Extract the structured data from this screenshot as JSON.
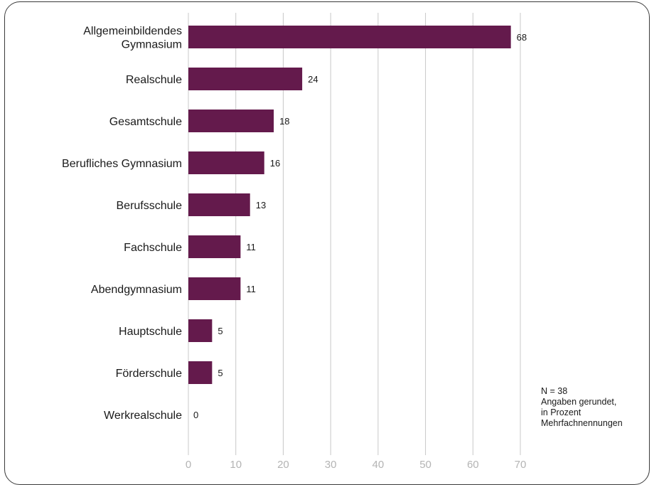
{
  "chart_data": {
    "type": "bar",
    "orientation": "horizontal",
    "categories": [
      "Allgemeinbildendes\nGymnasium",
      "Realschule",
      "Gesamtschule",
      "Berufliches Gymnasium",
      "Berufsschule",
      "Fachschule",
      "Abendgymnasium",
      "Hauptschule",
      "Förderschule",
      "Werkrealschule"
    ],
    "values": [
      68,
      24,
      18,
      16,
      13,
      11,
      11,
      5,
      5,
      0
    ],
    "data_labels": [
      "68",
      "24",
      "18",
      "16",
      "13",
      "11",
      "11",
      "5",
      "5",
      "0"
    ],
    "xlim": [
      0,
      70
    ],
    "x_ticks": [
      0,
      10,
      20,
      30,
      40,
      50,
      60,
      70
    ],
    "grid": true,
    "bar_color": "#641a4c",
    "grid_color": "#c8c8c8",
    "tick_label_color": "#b4b4b4"
  },
  "notes": {
    "n": "N = 38",
    "line1": "Angaben gerundet,",
    "line2": "in Prozent",
    "line3": "Mehrfachnennungen"
  }
}
